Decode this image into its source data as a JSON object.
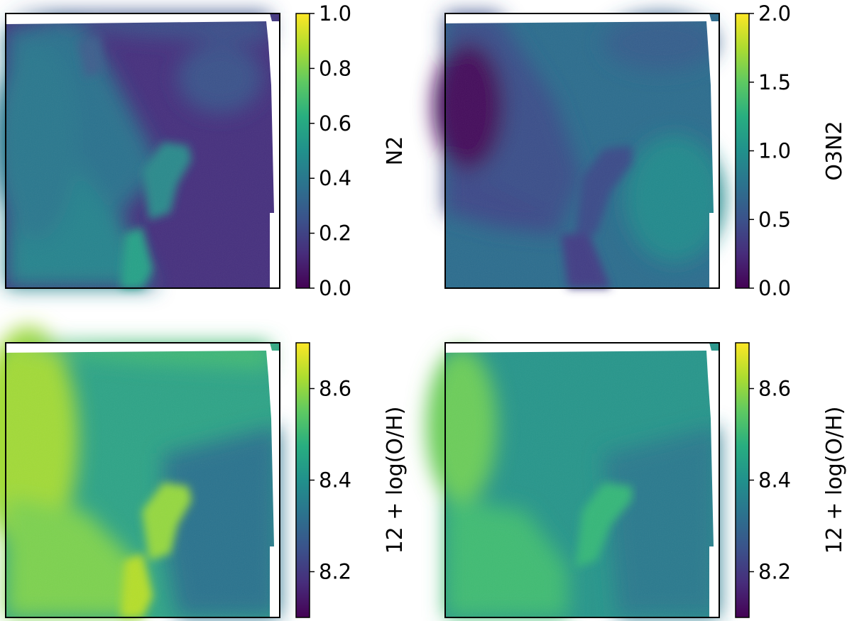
{
  "chart_data": [
    {
      "type": "heatmap",
      "title": "",
      "xlabel": "",
      "ylabel": "",
      "colormap": "viridis",
      "colorbar": {
        "label": "N2",
        "range": [
          0.0,
          1.0
        ],
        "ticks": [
          0.0,
          0.2,
          0.4,
          0.6,
          0.8,
          1.0
        ],
        "tick_labels": [
          "0.0",
          "0.2",
          "0.4",
          "0.6",
          "0.8",
          "1.0"
        ]
      }
    },
    {
      "type": "heatmap",
      "title": "",
      "xlabel": "",
      "ylabel": "",
      "colormap": "viridis",
      "colorbar": {
        "label": "O3N2",
        "range": [
          0.0,
          2.0
        ],
        "ticks": [
          0.0,
          0.5,
          1.0,
          1.5,
          2.0
        ],
        "tick_labels": [
          "0.0",
          "0.5",
          "1.0",
          "1.5",
          "2.0"
        ]
      }
    },
    {
      "type": "heatmap",
      "title": "",
      "xlabel": "",
      "ylabel": "",
      "colormap": "viridis",
      "colorbar": {
        "label": "12 + log(O/H)",
        "range": [
          8.1,
          8.7
        ],
        "ticks": [
          8.2,
          8.4,
          8.6
        ],
        "tick_labels": [
          "8.2",
          "8.4",
          "8.6"
        ]
      }
    },
    {
      "type": "heatmap",
      "title": "",
      "xlabel": "",
      "ylabel": "",
      "colormap": "viridis",
      "colorbar": {
        "label": "12 + log(O/H)",
        "range": [
          8.1,
          8.7
        ],
        "ticks": [
          8.2,
          8.4,
          8.6
        ],
        "tick_labels": [
          "8.2",
          "8.4",
          "8.6"
        ]
      }
    }
  ]
}
